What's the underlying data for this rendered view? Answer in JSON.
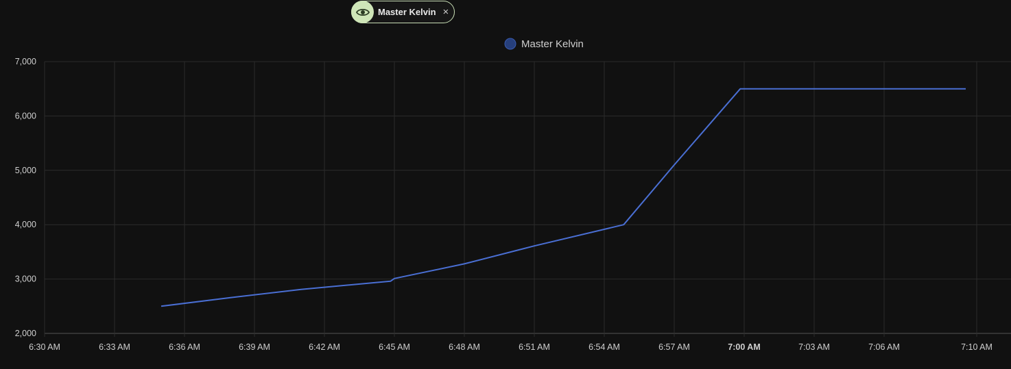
{
  "filter_chip": {
    "label": "Master Kelvin",
    "icon": "eye-icon",
    "close_glyph": "×"
  },
  "colors": {
    "background": "#111111",
    "grid": "#2c2c2c",
    "line": "#4a6fd4",
    "legend_dot": "#263f7c",
    "chip_accent": "#cfe6b8"
  },
  "chart_data": {
    "type": "line",
    "legend_placement": "top-center",
    "grid": true,
    "series": [
      {
        "name": "Master Kelvin",
        "x": [
          "06:35",
          "06:38",
          "06:41",
          "06:44:50",
          "06:45",
          "06:48",
          "06:51",
          "06:54:50",
          "06:57",
          "06:59:50",
          "07:09:30"
        ],
        "values": [
          2500,
          2660,
          2810,
          2960,
          3010,
          3280,
          3610,
          4000,
          5100,
          6500,
          6500
        ]
      }
    ],
    "x_ticks": [
      "6:30 AM",
      "6:33 AM",
      "6:36 AM",
      "6:39 AM",
      "6:42 AM",
      "6:45 AM",
      "6:48 AM",
      "6:51 AM",
      "6:54 AM",
      "6:57 AM",
      "7:00 AM",
      "7:03 AM",
      "7:06 AM",
      "7:10 AM"
    ],
    "x_tick_bold": "7:00 AM",
    "y_ticks": [
      "7,000",
      "6,000",
      "5,000",
      "4,000",
      "3,000",
      "2,000"
    ],
    "ylim": [
      2000,
      7000
    ]
  }
}
